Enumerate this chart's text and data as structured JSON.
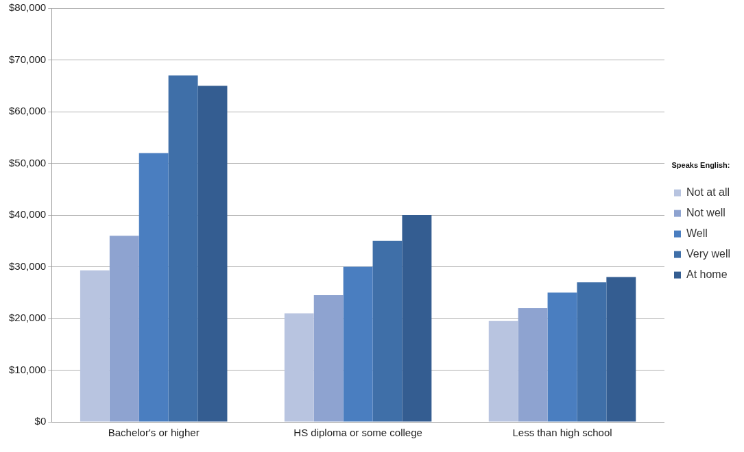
{
  "chart_data": {
    "type": "bar",
    "categories": [
      "Bachelor's or higher",
      "HS diploma or some college",
      "Less than high school"
    ],
    "series": [
      {
        "name": "Not at all",
        "color": "#b8c4e0",
        "values": [
          29300,
          21000,
          19500
        ]
      },
      {
        "name": "Not well",
        "color": "#8ea3d0",
        "values": [
          36000,
          24500,
          22000
        ]
      },
      {
        "name": "Well",
        "color": "#4a7ec0",
        "values": [
          52000,
          30000,
          25000
        ]
      },
      {
        "name": "Very well",
        "color": "#3f6fa8",
        "values": [
          67000,
          35000,
          27000
        ]
      },
      {
        "name": "At home",
        "color": "#345d91",
        "values": [
          65000,
          40000,
          28000
        ]
      }
    ],
    "ylim": [
      0,
      80000
    ],
    "yticks": [
      {
        "value": 0,
        "label": "$0"
      },
      {
        "value": 10000,
        "label": "$10,000"
      },
      {
        "value": 20000,
        "label": "$20,000"
      },
      {
        "value": 30000,
        "label": "$30,000"
      },
      {
        "value": 40000,
        "label": "$40,000"
      },
      {
        "value": 50000,
        "label": "$50,000"
      },
      {
        "value": 60000,
        "label": "$60,000"
      },
      {
        "value": 70000,
        "label": "$70,000"
      },
      {
        "value": 80000,
        "label": "$80,000"
      }
    ],
    "grid": "y",
    "legend": "right",
    "legend_title": "Speaks English:"
  }
}
